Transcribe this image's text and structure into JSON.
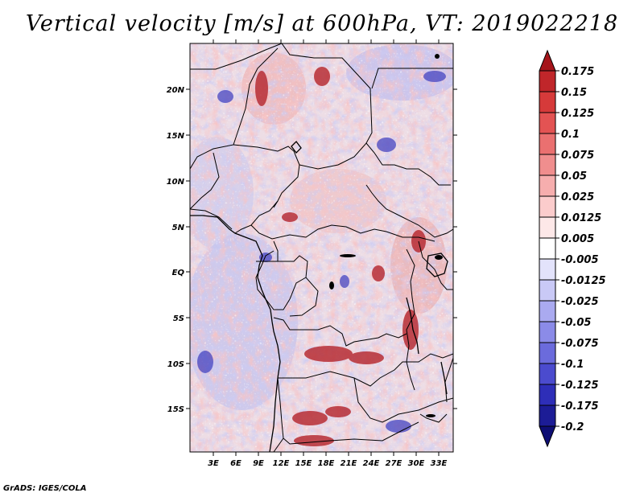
{
  "title": "Vertical velocity [m/s] at 600hPa, VT: 2019022218",
  "credit": "GrADS: IGES/COLA",
  "map": {
    "lat_labels": [
      "20N",
      "15N",
      "10N",
      "5N",
      "EQ",
      "5S",
      "10S",
      "15S"
    ],
    "lon_labels": [
      "3E",
      "6E",
      "9E",
      "12E",
      "15E",
      "18E",
      "21E",
      "24E",
      "27E",
      "30E",
      "33E"
    ]
  },
  "colorbar": {
    "labels": [
      "0.175",
      "0.15",
      "0.125",
      "0.1",
      "0.075",
      "0.05",
      "0.025",
      "0.0125",
      "0.005",
      "-0.005",
      "-0.0125",
      "-0.025",
      "-0.05",
      "-0.075",
      "-0.1",
      "-0.125",
      "-0.175",
      "-0.2"
    ],
    "colors": [
      "#a5141a",
      "#c0262a",
      "#d63a3a",
      "#e35353",
      "#ea7070",
      "#f08e8e",
      "#f6aeae",
      "#fbcccc",
      "#fde8e8",
      "#ffffff",
      "#e3e3fb",
      "#c9c9f6",
      "#aaaaf0",
      "#8b8be8",
      "#6b6bdc",
      "#4b4bce",
      "#2e2eb8",
      "#1c1c96",
      "#0e0e74"
    ]
  },
  "chart_data": {
    "type": "heatmap",
    "title": "Vertical velocity [m/s] at 600hPa, VT: 2019022218",
    "variable": "Vertical velocity",
    "units": "m/s",
    "level": "600hPa",
    "valid_time": "2019022218",
    "x_ticks": [
      "3E",
      "6E",
      "9E",
      "12E",
      "15E",
      "18E",
      "21E",
      "24E",
      "27E",
      "30E",
      "33E"
    ],
    "y_ticks": [
      "20N",
      "15N",
      "10N",
      "5N",
      "EQ",
      "5S",
      "10S",
      "15S"
    ],
    "colorbar_levels": [
      0.175,
      0.15,
      0.125,
      0.1,
      0.075,
      0.05,
      0.025,
      0.0125,
      0.005,
      -0.005,
      -0.0125,
      -0.025,
      -0.05,
      -0.075,
      -0.1,
      -0.125,
      -0.175,
      -0.2
    ]
  }
}
